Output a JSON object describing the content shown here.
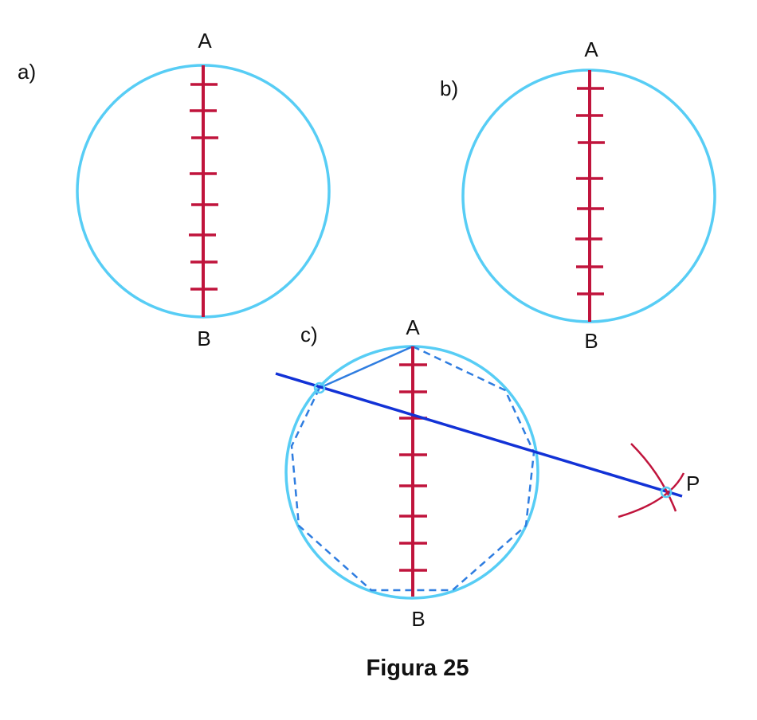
{
  "figure": {
    "caption": "Figura 25",
    "panels": [
      {
        "id": "a",
        "label": "a)",
        "point_top": "A",
        "point_bottom": "B",
        "ticks": 8
      },
      {
        "id": "b",
        "label": "b)",
        "point_top": "A",
        "point_bottom": "B",
        "ticks": 8
      },
      {
        "id": "c",
        "label": "c)",
        "point_top": "A",
        "point_bottom": "B",
        "point_external": "P",
        "ticks": 8,
        "polygon_sides": 9
      }
    ]
  },
  "colors": {
    "circle": "#57cdf5",
    "diameter": "#c0143c",
    "secant": "#1232d6",
    "polygon": "#2f7de0",
    "arcs": "#c0143c"
  }
}
